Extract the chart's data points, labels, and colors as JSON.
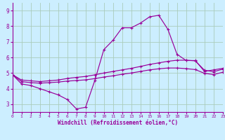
{
  "xlabel": "Windchill (Refroidissement éolien,°C)",
  "bg_color": "#cceeff",
  "grid_color": "#aaccbb",
  "line_color": "#990099",
  "xlim": [
    0,
    23
  ],
  "ylim": [
    2.5,
    9.5
  ],
  "xticks": [
    0,
    1,
    2,
    3,
    4,
    5,
    6,
    7,
    8,
    9,
    10,
    11,
    12,
    13,
    14,
    15,
    16,
    17,
    18,
    19,
    20,
    21,
    22,
    23
  ],
  "yticks": [
    3,
    4,
    5,
    6,
    7,
    8,
    9
  ],
  "line1_x": [
    0,
    1,
    2,
    3,
    4,
    5,
    6,
    7,
    8,
    9,
    10,
    11,
    12,
    13,
    14,
    15,
    16,
    17,
    18,
    19,
    20,
    21,
    22,
    23
  ],
  "line1_y": [
    4.9,
    4.3,
    4.2,
    4.0,
    3.8,
    3.6,
    3.3,
    2.7,
    2.8,
    4.5,
    6.5,
    7.1,
    7.9,
    7.9,
    8.2,
    8.6,
    8.7,
    7.8,
    6.2,
    5.8,
    5.8,
    5.1,
    5.2,
    5.3
  ],
  "line2_x": [
    0,
    1,
    2,
    3,
    4,
    5,
    6,
    7,
    8,
    9,
    10,
    11,
    12,
    13,
    14,
    15,
    16,
    17,
    18,
    19,
    20,
    21,
    22,
    23
  ],
  "line2_y": [
    4.9,
    4.55,
    4.5,
    4.45,
    4.5,
    4.55,
    4.65,
    4.72,
    4.78,
    4.88,
    5.0,
    5.1,
    5.2,
    5.3,
    5.42,
    5.55,
    5.65,
    5.75,
    5.82,
    5.82,
    5.78,
    5.18,
    5.08,
    5.25
  ],
  "line3_x": [
    0,
    1,
    2,
    3,
    4,
    5,
    6,
    7,
    8,
    9,
    10,
    11,
    12,
    13,
    14,
    15,
    16,
    17,
    18,
    19,
    20,
    21,
    22,
    23
  ],
  "line3_y": [
    4.9,
    4.45,
    4.38,
    4.35,
    4.38,
    4.42,
    4.48,
    4.52,
    4.56,
    4.64,
    4.74,
    4.82,
    4.92,
    5.0,
    5.1,
    5.2,
    5.27,
    5.32,
    5.32,
    5.28,
    5.22,
    4.98,
    4.9,
    5.05
  ]
}
